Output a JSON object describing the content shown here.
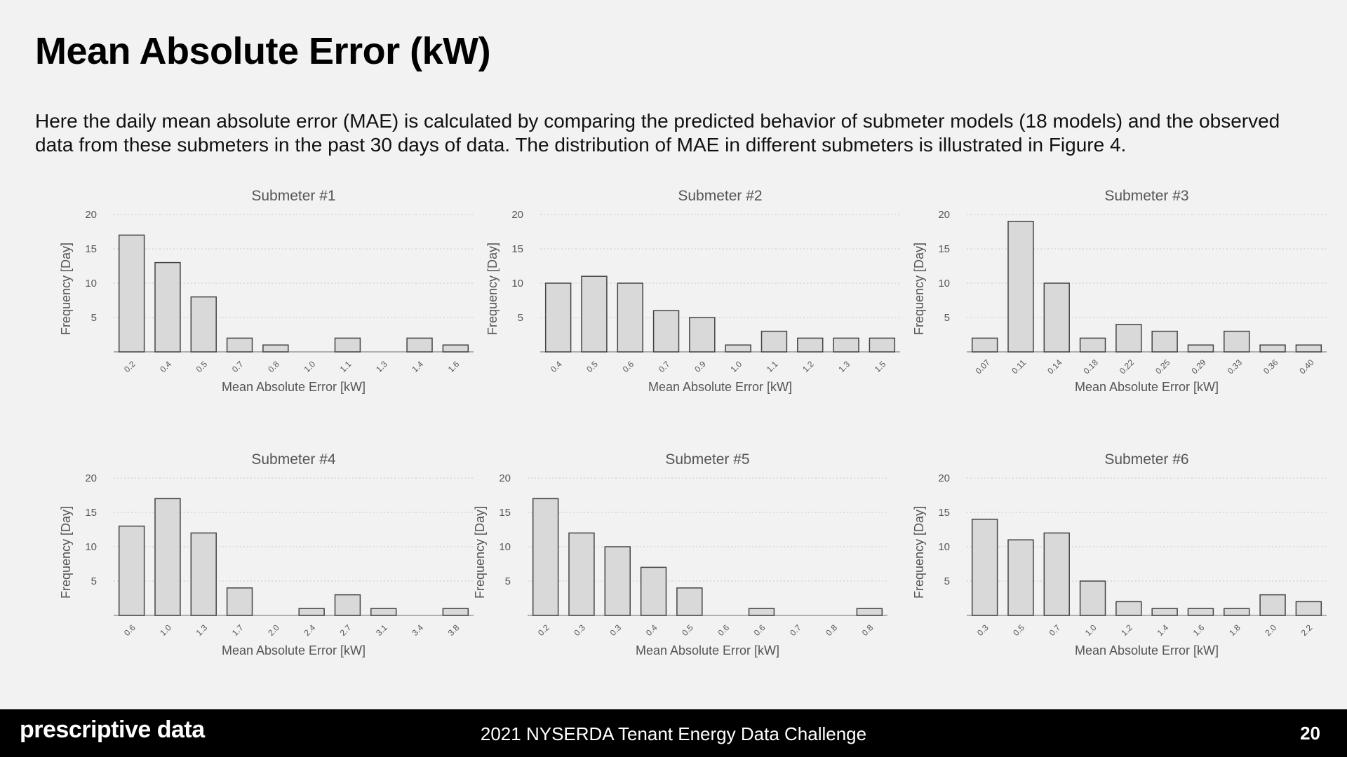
{
  "header": {
    "title": "Mean Absolute Error (kW)",
    "description": "Here the daily mean absolute error (MAE) is calculated by comparing the predicted behavior of submeter models (18 models) and the observed data from these submeters in the past 30 days of data. The distribution of MAE in different submeters is illustrated in Figure 4."
  },
  "footer": {
    "brand": "prescriptive data",
    "center": "2021 NYSERDA Tenant Energy Data Challenge",
    "page_number": "20"
  },
  "colors": {
    "bar_fill": "#d9d9d9",
    "bar_stroke": "#444444",
    "background": "#f2f2f2"
  },
  "chart_data": [
    {
      "type": "bar",
      "title": "Submeter #1",
      "xlabel": "Mean Absolute Error [kW]",
      "ylabel": "Frequency [Day]",
      "ylim": [
        0,
        20
      ],
      "yticks": [
        5,
        10,
        15,
        20
      ],
      "grid": true,
      "categories": [
        "0.2",
        "0.4",
        "0.5",
        "0.7",
        "0.8",
        "1.0",
        "1.1",
        "1.3",
        "1.4",
        "1.6"
      ],
      "values": [
        17,
        13,
        8,
        2,
        1,
        0,
        2,
        0,
        2,
        1
      ]
    },
    {
      "type": "bar",
      "title": "Submeter #2",
      "xlabel": "Mean Absolute Error [kW]",
      "ylabel": "Frequency [Day]",
      "ylim": [
        0,
        20
      ],
      "yticks": [
        5,
        10,
        15,
        20
      ],
      "grid": true,
      "categories": [
        "0.4",
        "0.5",
        "0.6",
        "0.7",
        "0.9",
        "1.0",
        "1.1",
        "1.2",
        "1.3",
        "1.5"
      ],
      "values": [
        10,
        11,
        10,
        6,
        5,
        1,
        3,
        2,
        2,
        2
      ]
    },
    {
      "type": "bar",
      "title": "Submeter #3",
      "xlabel": "Mean Absolute Error [kW]",
      "ylabel": "Frequency [Day]",
      "ylim": [
        0,
        20
      ],
      "yticks": [
        5,
        10,
        15,
        20
      ],
      "grid": true,
      "categories": [
        "0.07",
        "0.11",
        "0.14",
        "0.18",
        "0.22",
        "0.25",
        "0.29",
        "0.33",
        "0.36",
        "0.40"
      ],
      "values": [
        2,
        19,
        10,
        2,
        4,
        3,
        1,
        3,
        1,
        1
      ]
    },
    {
      "type": "bar",
      "title": "Submeter #4",
      "xlabel": "Mean Absolute Error [kW]",
      "ylabel": "Frequency [Day]",
      "ylim": [
        0,
        20
      ],
      "yticks": [
        5,
        10,
        15,
        20
      ],
      "grid": true,
      "categories": [
        "0.6",
        "1.0",
        "1.3",
        "1.7",
        "2.0",
        "2.4",
        "2.7",
        "3.1",
        "3.4",
        "3.8"
      ],
      "values": [
        13,
        17,
        12,
        4,
        0,
        1,
        3,
        1,
        0,
        1
      ]
    },
    {
      "type": "bar",
      "title": "Submeter #5",
      "xlabel": "Mean Absolute Error [kW]",
      "ylabel": "Frequency [Day]",
      "ylim": [
        0,
        20
      ],
      "yticks": [
        5,
        10,
        15,
        20
      ],
      "grid": true,
      "categories": [
        "0.2",
        "0.3",
        "0.3",
        "0.4",
        "0.5",
        "0.6",
        "0.6",
        "0.7",
        "0.8",
        "0.8"
      ],
      "values": [
        17,
        12,
        10,
        7,
        4,
        0,
        1,
        0,
        0,
        1
      ]
    },
    {
      "type": "bar",
      "title": "Submeter #6",
      "xlabel": "Mean Absolute Error [kW]",
      "ylabel": "Frequency [Day]",
      "ylim": [
        0,
        20
      ],
      "yticks": [
        5,
        10,
        15,
        20
      ],
      "grid": true,
      "categories": [
        "0.3",
        "0.5",
        "0.7",
        "1.0",
        "1.2",
        "1.4",
        "1.6",
        "1.8",
        "2.0",
        "2.2"
      ],
      "values": [
        14,
        11,
        12,
        5,
        2,
        1,
        1,
        1,
        3,
        2
      ]
    }
  ]
}
